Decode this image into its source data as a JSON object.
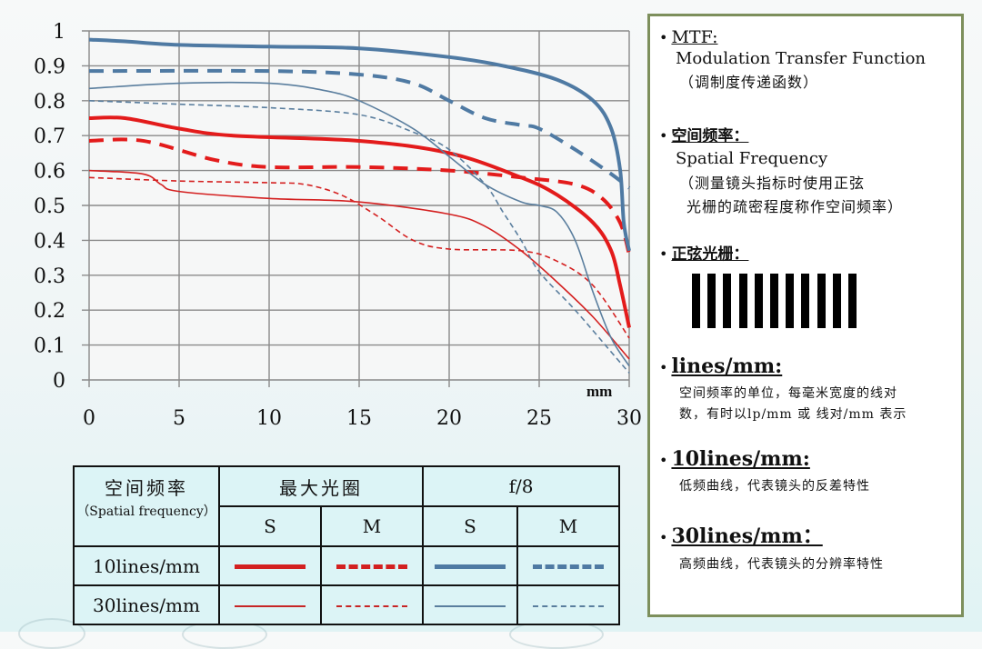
{
  "chart_data": {
    "type": "line",
    "title": "",
    "xlabel": "mm",
    "ylabel": "",
    "xlim": [
      0,
      30
    ],
    "ylim": [
      0,
      1
    ],
    "grid": true,
    "x_ticks": [
      "0",
      "5",
      "10",
      "15",
      "20",
      "25",
      "30"
    ],
    "y_ticks": [
      "0",
      "0.1",
      "0.2",
      "0.3",
      "0.4",
      "0.5",
      "0.6",
      "0.7",
      "0.8",
      "0.9",
      "1"
    ],
    "legend_position": "table below chart",
    "series": [
      {
        "name": "10lines/mm S (最大光圈)",
        "color": "#e31b1b",
        "width": 4,
        "dash": "solid",
        "x": [
          0,
          2,
          5,
          8,
          15,
          20,
          24,
          26,
          28,
          29,
          29.5,
          30
        ],
        "y": [
          0.75,
          0.75,
          0.72,
          0.7,
          0.685,
          0.65,
          0.58,
          0.53,
          0.45,
          0.37,
          0.27,
          0.15
        ]
      },
      {
        "name": "10lines/mm M (最大光圈)",
        "color": "#e31b1b",
        "width": 4,
        "dash": "dashed",
        "x": [
          0,
          3,
          7,
          10,
          15,
          20,
          24,
          27,
          28.5,
          29.5,
          30
        ],
        "y": [
          0.685,
          0.685,
          0.63,
          0.61,
          0.61,
          0.6,
          0.58,
          0.56,
          0.52,
          0.45,
          0.36
        ]
      },
      {
        "name": "30lines/mm S (最大光圈)",
        "color": "#d42020",
        "width": 1.6,
        "dash": "solid",
        "x": [
          0,
          3,
          4,
          5,
          10,
          15,
          20,
          22,
          24,
          26,
          28,
          30
        ],
        "y": [
          0.6,
          0.59,
          0.56,
          0.54,
          0.52,
          0.51,
          0.475,
          0.44,
          0.37,
          0.28,
          0.18,
          0.06
        ]
      },
      {
        "name": "30lines/mm M (最大光圈)",
        "color": "#d42020",
        "width": 1.6,
        "dash": "dotted",
        "x": [
          0,
          5,
          10,
          12,
          14,
          16,
          18,
          20,
          24,
          26,
          28,
          30
        ],
        "y": [
          0.58,
          0.57,
          0.565,
          0.56,
          0.53,
          0.47,
          0.4,
          0.375,
          0.37,
          0.34,
          0.27,
          0.12
        ]
      },
      {
        "name": "10lines/mm S (f/8)",
        "color": "#4f7aa3",
        "width": 4,
        "dash": "solid",
        "x": [
          0,
          2,
          5,
          10,
          15,
          20,
          23,
          26,
          28,
          29,
          29.5,
          29.7,
          30
        ],
        "y": [
          0.975,
          0.97,
          0.96,
          0.955,
          0.95,
          0.925,
          0.9,
          0.86,
          0.8,
          0.72,
          0.6,
          0.45,
          0.37
        ]
      },
      {
        "name": "10lines/mm M (f/8)",
        "color": "#4f7aa3",
        "width": 4,
        "dash": "dashed",
        "x": [
          0,
          10,
          15,
          18,
          20,
          22,
          24,
          25,
          27,
          29,
          30
        ],
        "y": [
          0.885,
          0.885,
          0.875,
          0.85,
          0.8,
          0.75,
          0.73,
          0.72,
          0.66,
          0.59,
          0.55
        ]
      },
      {
        "name": "30lines/mm S (f/8)",
        "color": "#5a7e9e",
        "width": 1.6,
        "dash": "solid",
        "x": [
          0,
          5,
          10,
          13,
          15,
          18,
          20,
          22,
          24,
          25,
          26,
          27,
          28,
          29,
          30
        ],
        "y": [
          0.835,
          0.85,
          0.85,
          0.83,
          0.8,
          0.72,
          0.64,
          0.56,
          0.51,
          0.5,
          0.48,
          0.4,
          0.25,
          0.12,
          0.04
        ]
      },
      {
        "name": "30lines/mm M (f/8)",
        "color": "#5a7e9e",
        "width": 1.6,
        "dash": "dotted",
        "x": [
          0,
          5,
          10,
          15,
          18,
          20,
          22,
          23,
          24,
          25,
          27,
          29,
          30
        ],
        "y": [
          0.8,
          0.79,
          0.78,
          0.76,
          0.71,
          0.66,
          0.56,
          0.48,
          0.4,
          0.31,
          0.2,
          0.08,
          0.02
        ]
      }
    ]
  },
  "legend_table": {
    "header_freq_cn": "空间频率",
    "header_freq_en": "（Spatial frequency）",
    "group_max": "最大光圈",
    "group_f8": "f/8",
    "col_s": "S",
    "col_m": "M",
    "row_10": "10lines/mm",
    "row_30": "30lines/mm"
  },
  "panel": {
    "bullet": "•",
    "mtf_head": "MTF:",
    "mtf_en": "Modulation Transfer Function",
    "mtf_cn": "（调制度传递函数）",
    "sf_head": "空间频率：",
    "sf_en": "Spatial Frequency",
    "sf_cn1": "（测量镜头指标时使用正弦",
    "sf_cn2": "光栅的疏密程度称作空间频率）",
    "grating_head": "正弦光栅：",
    "grating_bars": 11,
    "lpm_head": "lines/mm:",
    "lpm_cn1": "空间频率的单位，每毫米宽度的线对",
    "lpm_cn2": "数，有时以lp/mm 或 线对/mm 表示",
    "l10_head": "10lines/mm:",
    "l10_cn": "低频曲线，代表镜头的反差特性",
    "l30_head": "30lines/mm：",
    "l30_cn": "高频曲线，代表镜头的分辨率特性"
  },
  "colors": {
    "red": "#e31b1b",
    "blue": "#4f7aa3",
    "panel_border": "#7d8f5c"
  }
}
